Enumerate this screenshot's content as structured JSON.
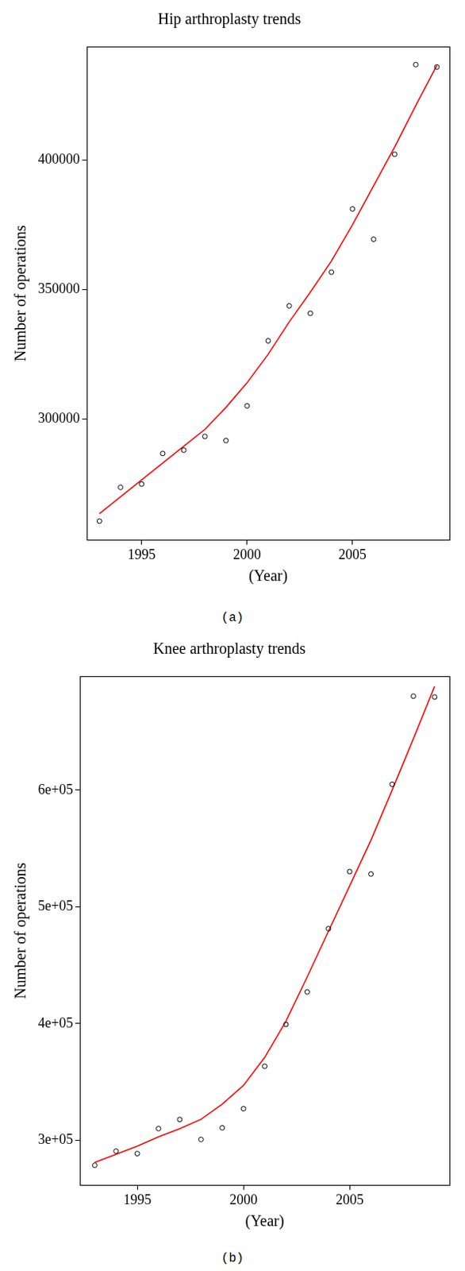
{
  "chart_data": [
    {
      "type": "scatter",
      "title": "Hip arthroplasty trends",
      "x_label": "(Year)",
      "y_label": "Number of operations",
      "caption": "(a)",
      "x": [
        1993,
        1994,
        1995,
        1996,
        1997,
        1998,
        1999,
        2000,
        2001,
        2002,
        2003,
        2004,
        2005,
        2006,
        2007,
        2008,
        2009
      ],
      "series": [
        {
          "type": "scatter",
          "color": "#000000",
          "marker": "circle",
          "line_style": "none",
          "values": [
            260600,
            273650,
            274900,
            286700,
            288000,
            293300,
            291700,
            305100,
            330200,
            343700,
            340800,
            356700,
            381100,
            369400,
            402200,
            436800,
            435900
          ]
        },
        {
          "type": "line",
          "color": "#ff0000",
          "marker": "none",
          "line_style": "solid",
          "values": [
            263500,
            270000,
            276500,
            283000,
            289500,
            296000,
            304500,
            314000,
            325000,
            337500,
            349000,
            361000,
            375000,
            390000,
            405000,
            421000,
            436500
          ]
        }
      ],
      "xlim": [
        1992.4,
        2009.6
      ],
      "xticks": [
        1995,
        2000,
        2005
      ],
      "ylim": [
        253300,
        443800
      ],
      "yticks": [
        300000,
        350000,
        400000
      ],
      "grid": false
    },
    {
      "type": "scatter",
      "title": "Knee arthroplasty trends",
      "x_label": "(Year)",
      "y_label": "Number of operations",
      "caption": "(b)",
      "x": [
        1993,
        1994,
        1995,
        1996,
        1997,
        1998,
        1999,
        2000,
        2001,
        2002,
        2003,
        2004,
        2005,
        2006,
        2007,
        2008,
        2009
      ],
      "series": [
        {
          "type": "scatter",
          "color": "#000000",
          "marker": "circle",
          "line_style": "none",
          "values": [
            278600,
            290700,
            288600,
            310000,
            317800,
            300700,
            310700,
            327100,
            363400,
            399300,
            427100,
            481300,
            530200,
            528100,
            605000,
            680500,
            679800
          ]
        },
        {
          "type": "line",
          "color": "#ff0000",
          "marker": "none",
          "line_style": "solid",
          "values": [
            281000,
            288000,
            295000,
            303000,
            310000,
            318000,
            331000,
            347000,
            371000,
            402000,
            440000,
            479000,
            518000,
            557000,
            600000,
            644000,
            689000
          ]
        }
      ],
      "xlim": [
        1992.3,
        2009.7
      ],
      "xticks": [
        1995,
        2000,
        2005
      ],
      "ylim": [
        261500,
        697600
      ],
      "yticks": [
        {
          "value": 300000,
          "label": "3e+05"
        },
        {
          "value": 400000,
          "label": "4e+05"
        },
        {
          "value": 500000,
          "label": "5e+05"
        },
        {
          "value": 600000,
          "label": "6e+05"
        }
      ],
      "grid": false
    }
  ]
}
